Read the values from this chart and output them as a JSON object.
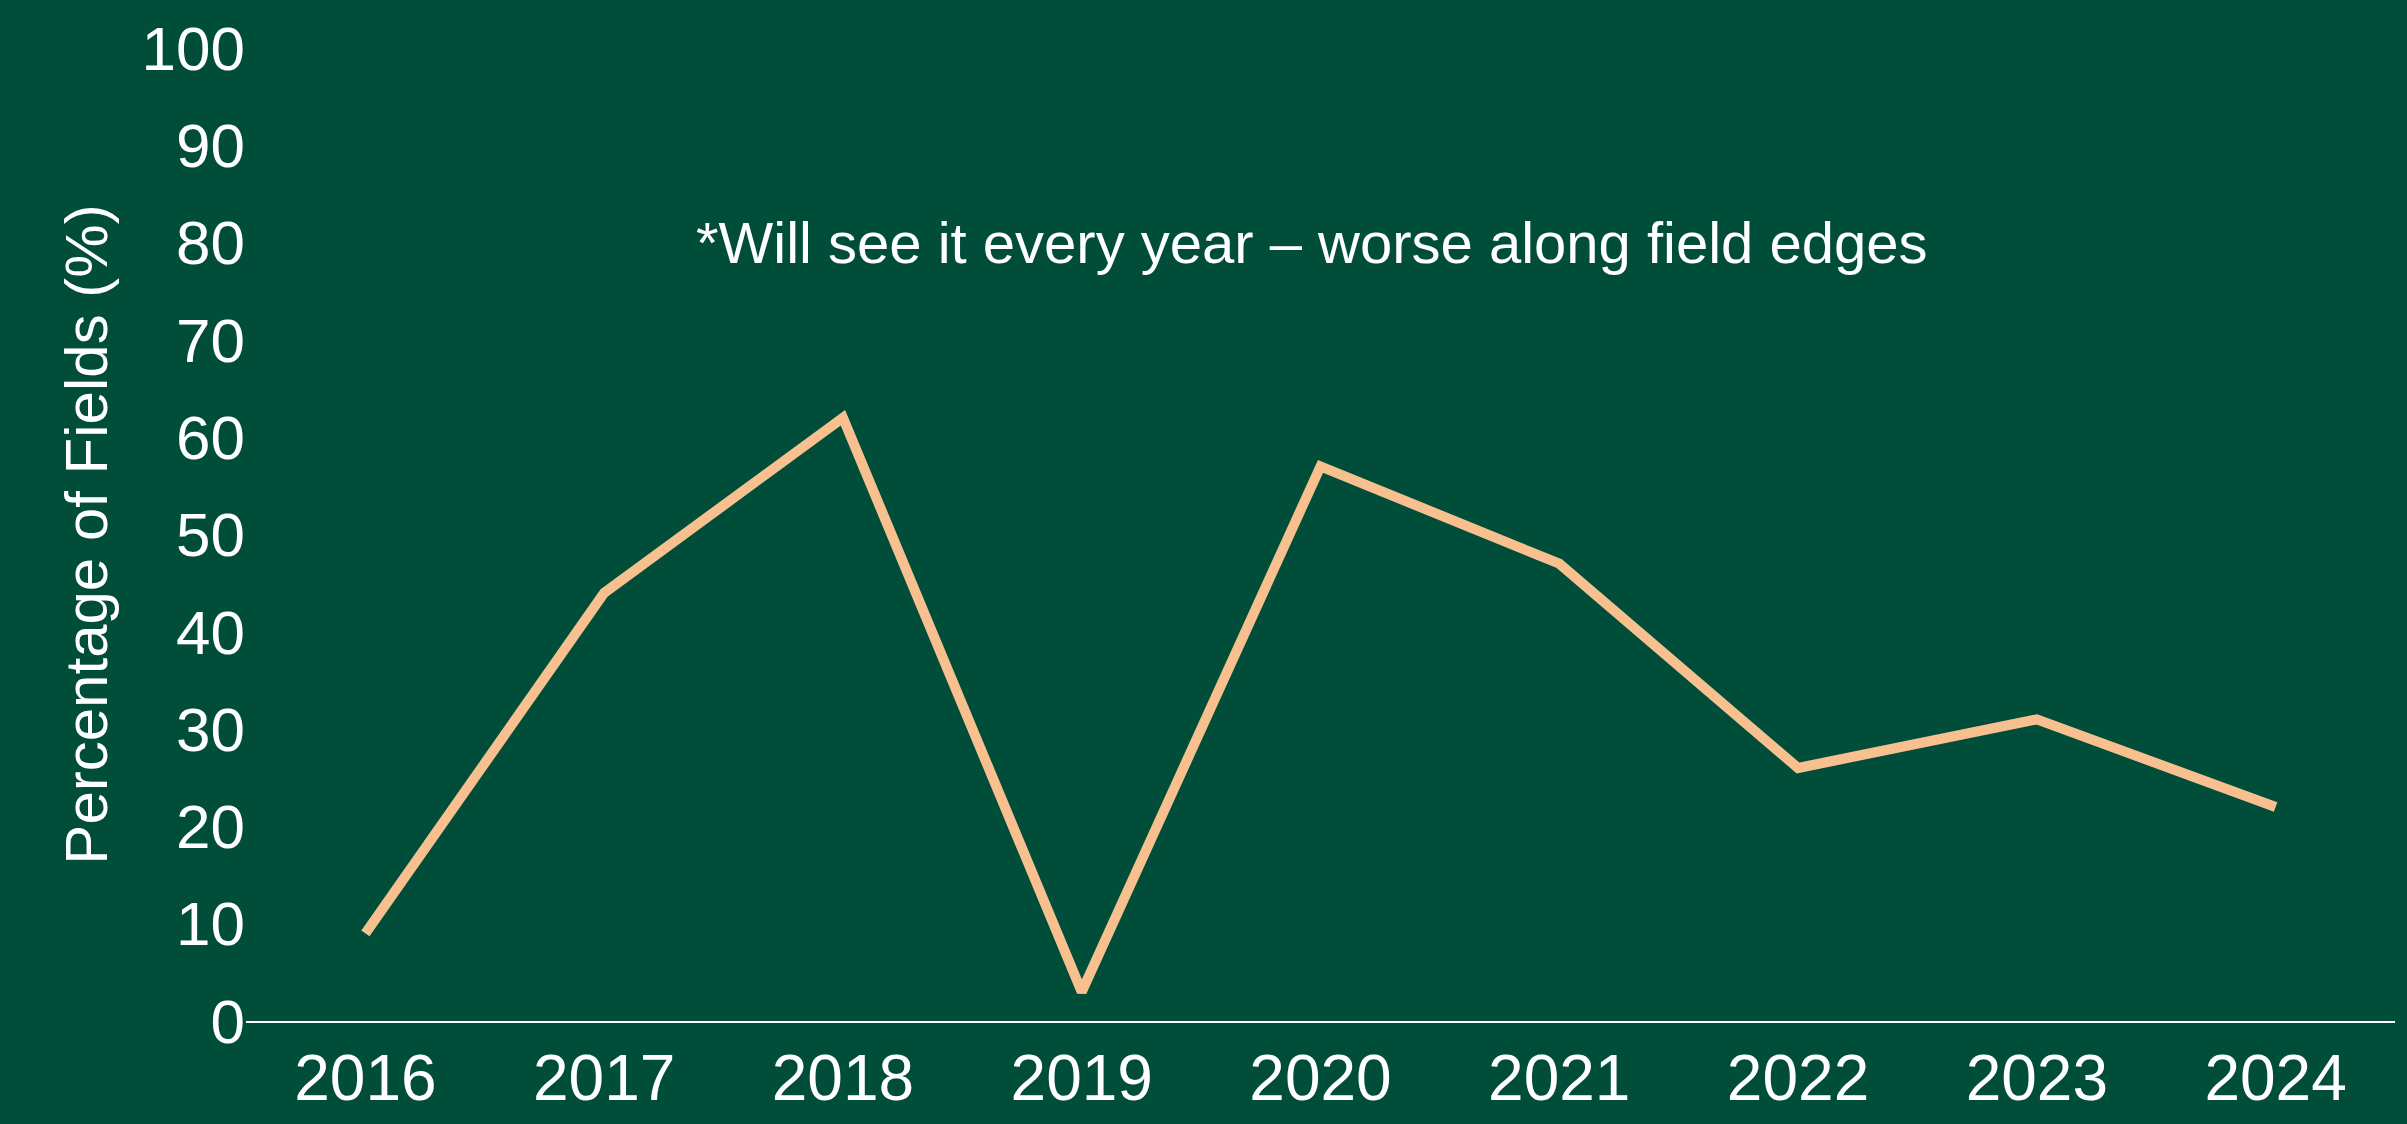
{
  "chart_data": {
    "type": "line",
    "ylabel": "Percentage of Fields (%)",
    "categories": [
      "2016",
      "2017",
      "2018",
      "2019",
      "2020",
      "2021",
      "2022",
      "2023",
      "2024"
    ],
    "series": [
      {
        "color": "#f9c08f",
        "values": [
          9,
          44,
          62,
          3,
          57,
          47,
          26,
          31,
          22
        ]
      }
    ],
    "ylim": [
      0,
      100
    ],
    "yticks": [
      0,
      10,
      20,
      30,
      40,
      50,
      60,
      70,
      80,
      90,
      100
    ],
    "grid": false,
    "legend": false,
    "marker": "none",
    "line_style": "solid",
    "annotations": [
      "*Will see it every year – worse along field edges"
    ]
  }
}
